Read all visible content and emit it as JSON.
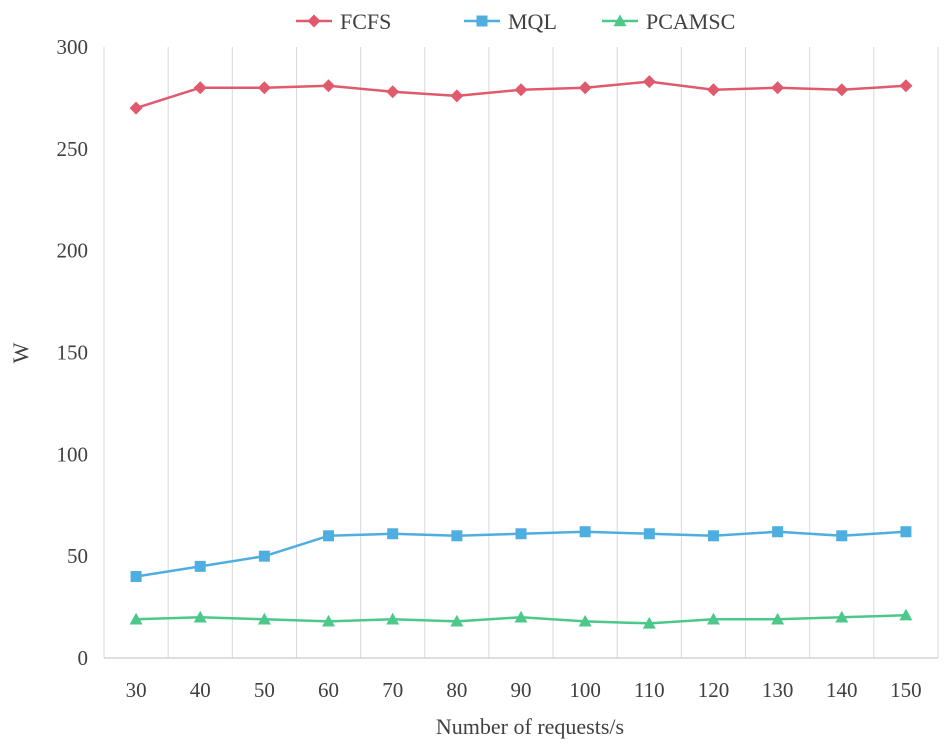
{
  "chart_data": {
    "type": "line",
    "title": "",
    "xlabel": "Number of requests/s",
    "ylabel": "W",
    "categories": [
      "30",
      "40",
      "50",
      "60",
      "70",
      "80",
      "90",
      "100",
      "110",
      "120",
      "130",
      "140",
      "150"
    ],
    "ylim": [
      0,
      300
    ],
    "yticks": [
      0,
      50,
      100,
      150,
      200,
      250,
      300
    ],
    "grid": "vertical",
    "legend_position": "top-center",
    "series": [
      {
        "name": "FCFS",
        "color": "#E05A6E",
        "marker": "diamond",
        "values": [
          270,
          280,
          280,
          281,
          278,
          276,
          279,
          280,
          283,
          279,
          280,
          279,
          281
        ]
      },
      {
        "name": "MQL",
        "color": "#4FAEE0",
        "marker": "square",
        "values": [
          40,
          45,
          50,
          60,
          61,
          60,
          61,
          62,
          61,
          60,
          62,
          60,
          62
        ]
      },
      {
        "name": "PCAMSC",
        "color": "#4CC98A",
        "marker": "triangle",
        "values": [
          19,
          20,
          19,
          18,
          19,
          18,
          20,
          18,
          17,
          19,
          19,
          20,
          21
        ]
      }
    ]
  }
}
